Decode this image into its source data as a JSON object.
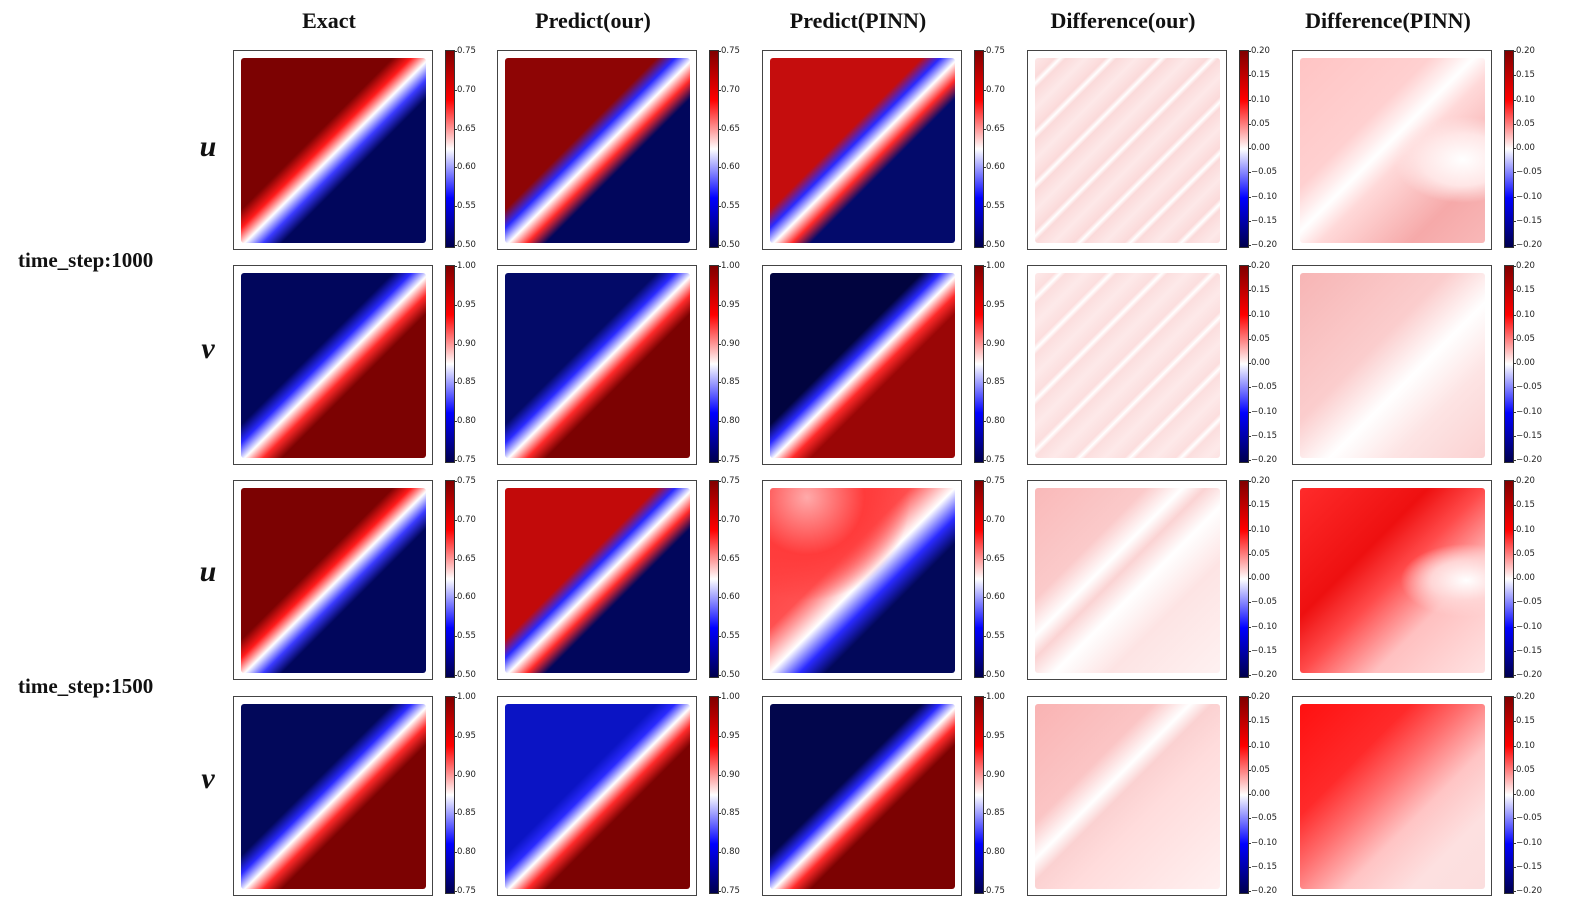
{
  "chart_data": {
    "type": "heatmap",
    "title": "",
    "columns": [
      "Exact",
      "Predict(our)",
      "Predict(PINN)",
      "Difference(our)",
      "Difference(PINN)"
    ],
    "time_steps": [
      "time_step:1000",
      "time_step:1500"
    ],
    "variables": [
      "u",
      "v"
    ],
    "colormap": "seismic",
    "rows": [
      {
        "time_step": "time_step:1000",
        "variable": "u",
        "field_cbar": {
          "min": 0.5,
          "max": 0.75,
          "ticks": [
            "0.75",
            "0.70",
            "0.65",
            "0.60",
            "0.55",
            "0.50"
          ]
        },
        "diff_cbar": {
          "min": -0.2,
          "max": 0.2,
          "ticks": [
            "0.20",
            "0.15",
            "0.10",
            "0.05",
            "0.00",
            "−0.05",
            "−0.10",
            "−0.15",
            "−0.20"
          ]
        }
      },
      {
        "time_step": "time_step:1000",
        "variable": "v",
        "field_cbar": {
          "min": 0.75,
          "max": 1.0,
          "ticks": [
            "1.00",
            "0.95",
            "0.90",
            "0.85",
            "0.80",
            "0.75"
          ]
        },
        "diff_cbar": {
          "min": -0.2,
          "max": 0.2,
          "ticks": [
            "0.20",
            "0.15",
            "0.10",
            "0.05",
            "0.00",
            "−0.05",
            "−0.10",
            "−0.15",
            "−0.20"
          ]
        }
      },
      {
        "time_step": "time_step:1500",
        "variable": "u",
        "field_cbar": {
          "min": 0.5,
          "max": 0.75,
          "ticks": [
            "0.75",
            "0.70",
            "0.65",
            "0.60",
            "0.55",
            "0.50"
          ]
        },
        "diff_cbar": {
          "min": -0.2,
          "max": 0.2,
          "ticks": [
            "0.20",
            "0.15",
            "0.10",
            "0.05",
            "0.00",
            "−0.05",
            "−0.10",
            "−0.15",
            "−0.20"
          ]
        }
      },
      {
        "time_step": "time_step:1500",
        "variable": "v",
        "field_cbar": {
          "min": 0.75,
          "max": 1.0,
          "ticks": [
            "1.00",
            "0.95",
            "0.90",
            "0.85",
            "0.80",
            "0.75"
          ]
        },
        "diff_cbar": {
          "min": -0.2,
          "max": 0.2,
          "ticks": [
            "0.20",
            "0.15",
            "0.10",
            "0.05",
            "0.00",
            "−0.05",
            "−0.10",
            "−0.15",
            "−0.20"
          ]
        }
      }
    ]
  }
}
